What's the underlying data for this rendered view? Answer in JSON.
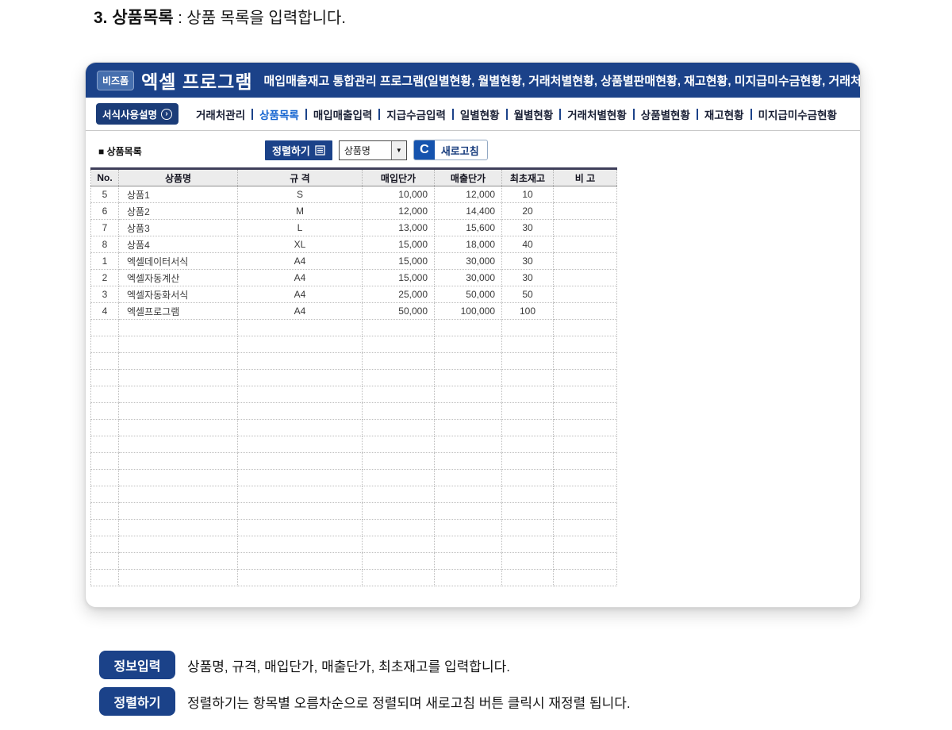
{
  "page_title": {
    "bold": "3. 상품목록",
    "rest": " : 상품 목록을 입력합니다."
  },
  "app_header": {
    "logo": "비즈폼",
    "title": "엑셀 프로그램",
    "subtitle": "매입매출재고 통합관리 프로그램(일별현황, 월별현황, 거래처별현황, 상품별판매현황, 재고현황, 미지급미수금현황, 거래처"
  },
  "nav": {
    "guide_button": {
      "label": "서식사용설명",
      "icon": "chevron-right-circle"
    },
    "tabs": [
      {
        "label": "거래처관리",
        "active": false
      },
      {
        "label": "상품목록",
        "active": true
      },
      {
        "label": "매입매출입력",
        "active": false
      },
      {
        "label": "지급수금입력",
        "active": false
      },
      {
        "label": "일별현황",
        "active": false
      },
      {
        "label": "월별현황",
        "active": false
      },
      {
        "label": "거래처별현황",
        "active": false
      },
      {
        "label": "상품별현황",
        "active": false
      },
      {
        "label": "재고현황",
        "active": false
      },
      {
        "label": "미지급미수금현황",
        "active": false
      }
    ]
  },
  "toolbar": {
    "section_label": "■ 상품목록",
    "sort_button": "정렬하기",
    "sort_icon": "list-icon",
    "sort_value": "상품명",
    "dropdown_arrow": "▼",
    "refresh_icon": "C",
    "refresh_label": "새로고침"
  },
  "table": {
    "columns": [
      "No.",
      "상품명",
      "규 격",
      "매입단가",
      "매출단가",
      "최초재고",
      "비 고"
    ],
    "rows": [
      [
        "5",
        "상품1",
        "S",
        "10,000",
        "12,000",
        "10",
        ""
      ],
      [
        "6",
        "상품2",
        "M",
        "12,000",
        "14,400",
        "20",
        ""
      ],
      [
        "7",
        "상품3",
        "L",
        "13,000",
        "15,600",
        "30",
        ""
      ],
      [
        "8",
        "상품4",
        "XL",
        "15,000",
        "18,000",
        "40",
        ""
      ],
      [
        "1",
        "엑셀데이터서식",
        "A4",
        "15,000",
        "30,000",
        "30",
        ""
      ],
      [
        "2",
        "엑셀자동계산",
        "A4",
        "15,000",
        "30,000",
        "30",
        ""
      ],
      [
        "3",
        "엑셀자동화서식",
        "A4",
        "25,000",
        "50,000",
        "50",
        ""
      ],
      [
        "4",
        "엑셀프로그램",
        "A4",
        "50,000",
        "100,000",
        "100",
        ""
      ]
    ],
    "empty_row_count": 16
  },
  "notes": [
    {
      "badge": "정보입력",
      "text": "상품명, 규격, 매입단가, 매출단가, 최초재고를 입력합니다."
    },
    {
      "badge": "정렬하기",
      "text": "정렬하기는 항목별 오름차순으로 정렬되며 새로고침 버튼 클릭시 재정렬 됩니다."
    }
  ],
  "colors": {
    "header_bg": "#1B4289",
    "active_tab": "#1565D0",
    "badge_bg": "#1B4289",
    "refresh_icon_bg": "#1553AE"
  }
}
